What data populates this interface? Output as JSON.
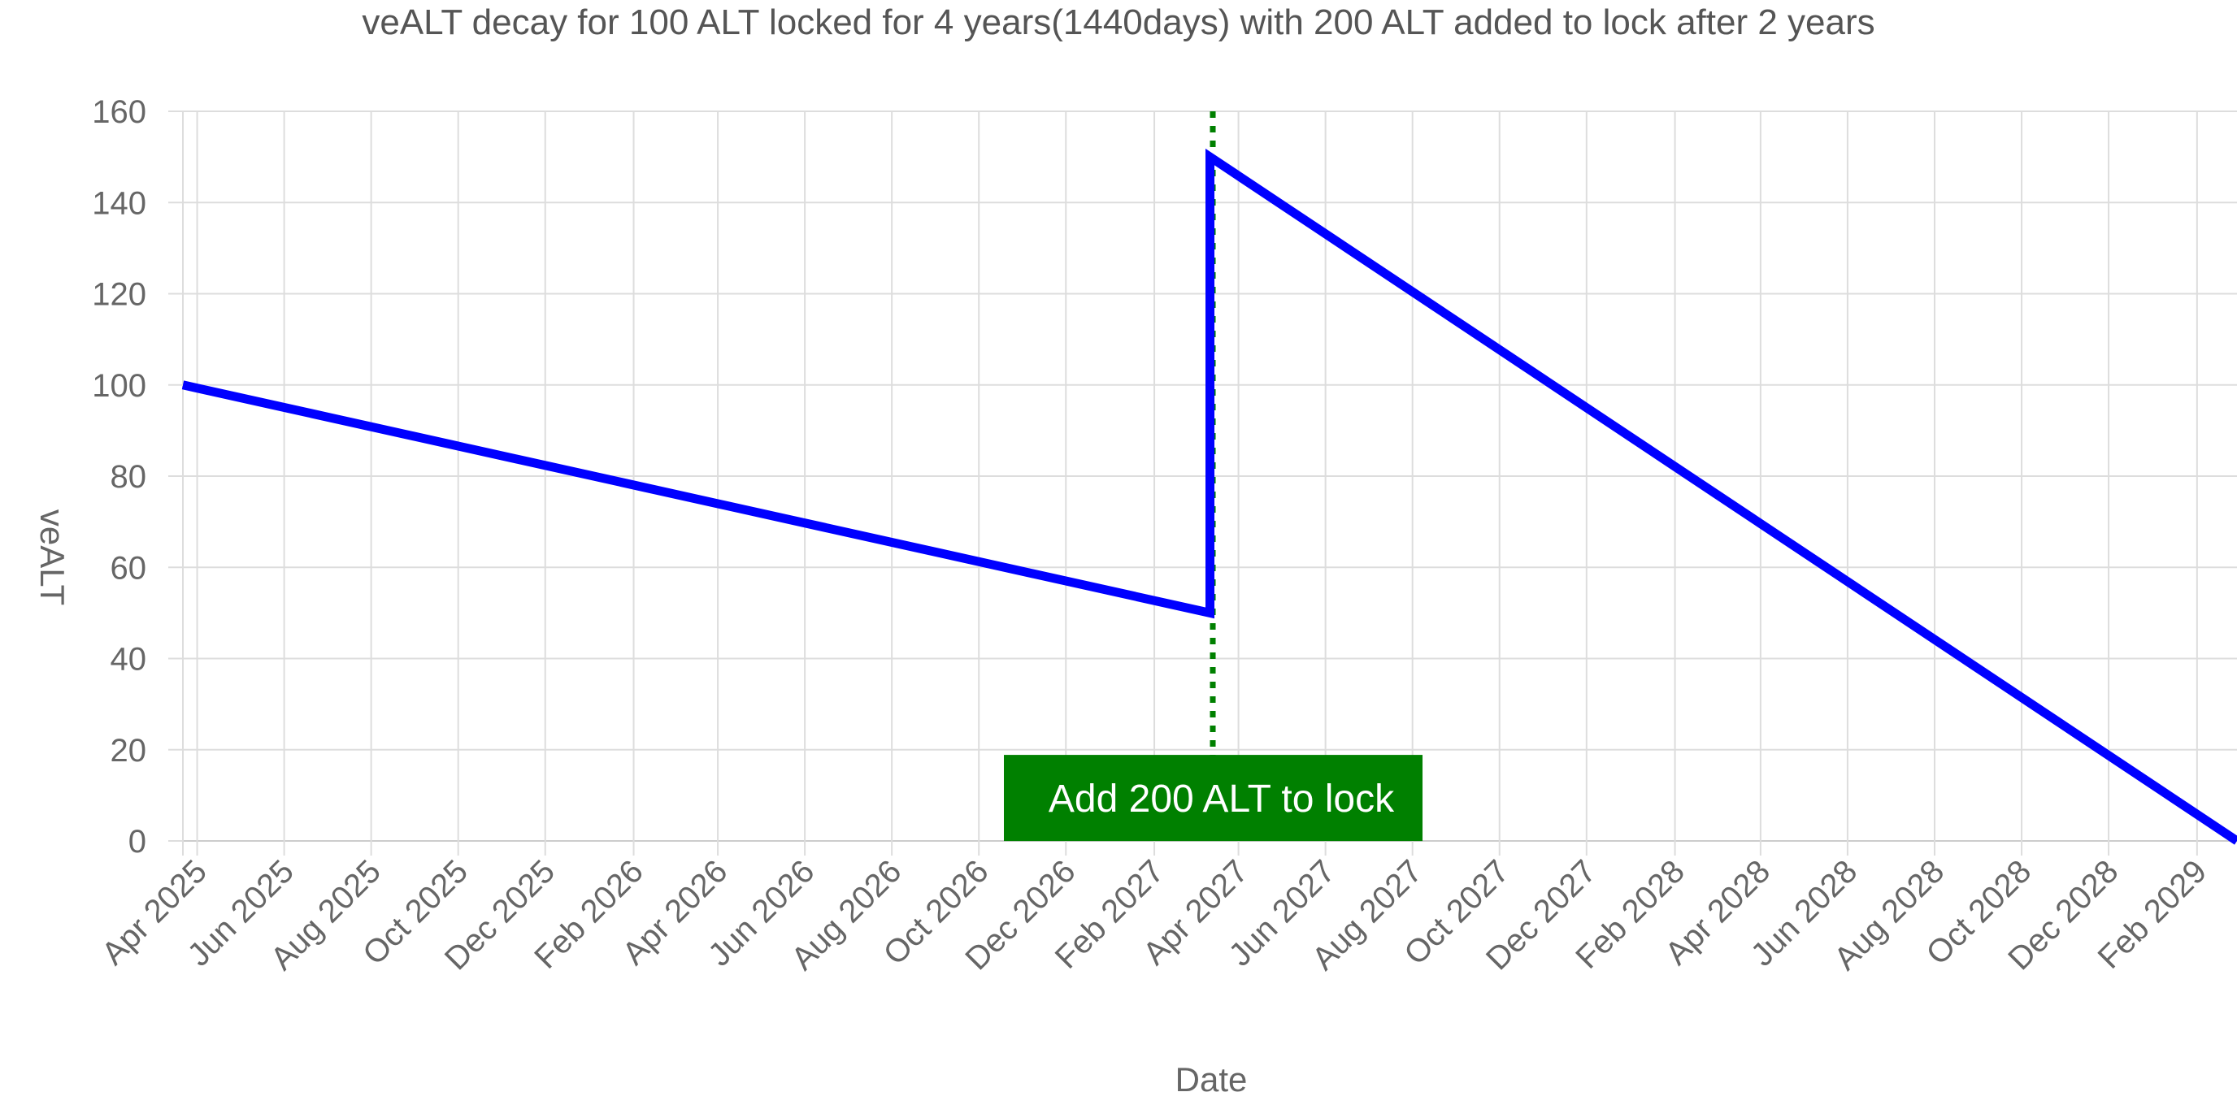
{
  "chart_data": {
    "type": "line",
    "title": "veALT decay for 100 ALT locked for 4 years(1440days) with 200 ALT added to lock after 2 years",
    "xlabel": "Date",
    "ylabel": "veALT",
    "ylim": [
      0,
      160
    ],
    "yticks": [
      0,
      20,
      40,
      60,
      80,
      100,
      120,
      140,
      160
    ],
    "xlim": [
      "2025-03-22",
      "2029-03-01"
    ],
    "xticks": [
      {
        "date": "2025-04-01",
        "label": "Apr 2025"
      },
      {
        "date": "2025-06-01",
        "label": "Jun 2025"
      },
      {
        "date": "2025-08-01",
        "label": "Aug 2025"
      },
      {
        "date": "2025-10-01",
        "label": "Oct 2025"
      },
      {
        "date": "2025-12-01",
        "label": "Dec 2025"
      },
      {
        "date": "2026-02-01",
        "label": "Feb 2026"
      },
      {
        "date": "2026-04-01",
        "label": "Apr 2026"
      },
      {
        "date": "2026-06-01",
        "label": "Jun 2026"
      },
      {
        "date": "2026-08-01",
        "label": "Aug 2026"
      },
      {
        "date": "2026-10-01",
        "label": "Oct 2026"
      },
      {
        "date": "2026-12-01",
        "label": "Dec 2026"
      },
      {
        "date": "2027-02-01",
        "label": "Feb 2027"
      },
      {
        "date": "2027-04-01",
        "label": "Apr 2027"
      },
      {
        "date": "2027-06-01",
        "label": "Jun 2027"
      },
      {
        "date": "2027-08-01",
        "label": "Aug 2027"
      },
      {
        "date": "2027-10-01",
        "label": "Oct 2027"
      },
      {
        "date": "2027-12-01",
        "label": "Dec 2027"
      },
      {
        "date": "2028-02-01",
        "label": "Feb 2028"
      },
      {
        "date": "2028-04-01",
        "label": "Apr 2028"
      },
      {
        "date": "2028-06-01",
        "label": "Jun 2028"
      },
      {
        "date": "2028-08-01",
        "label": "Aug 2028"
      },
      {
        "date": "2028-10-01",
        "label": "Oct 2028"
      },
      {
        "date": "2028-12-01",
        "label": "Dec 2028"
      },
      {
        "date": "2029-02-01",
        "label": "Feb 2029"
      }
    ],
    "grid": true,
    "series": [
      {
        "color": "#0000ff",
        "x": [
          "2025-03-22",
          "2027-03-12",
          "2027-03-12",
          "2029-03-01"
        ],
        "y": [
          100,
          50,
          150,
          0
        ]
      }
    ],
    "annotations": [
      {
        "type": "vline",
        "x": "2027-03-14",
        "color": "#008000",
        "style": "dotted",
        "label": "Add 200 ALT to lock",
        "label_background": "#008000",
        "label_color": "#ffffff"
      }
    ]
  }
}
